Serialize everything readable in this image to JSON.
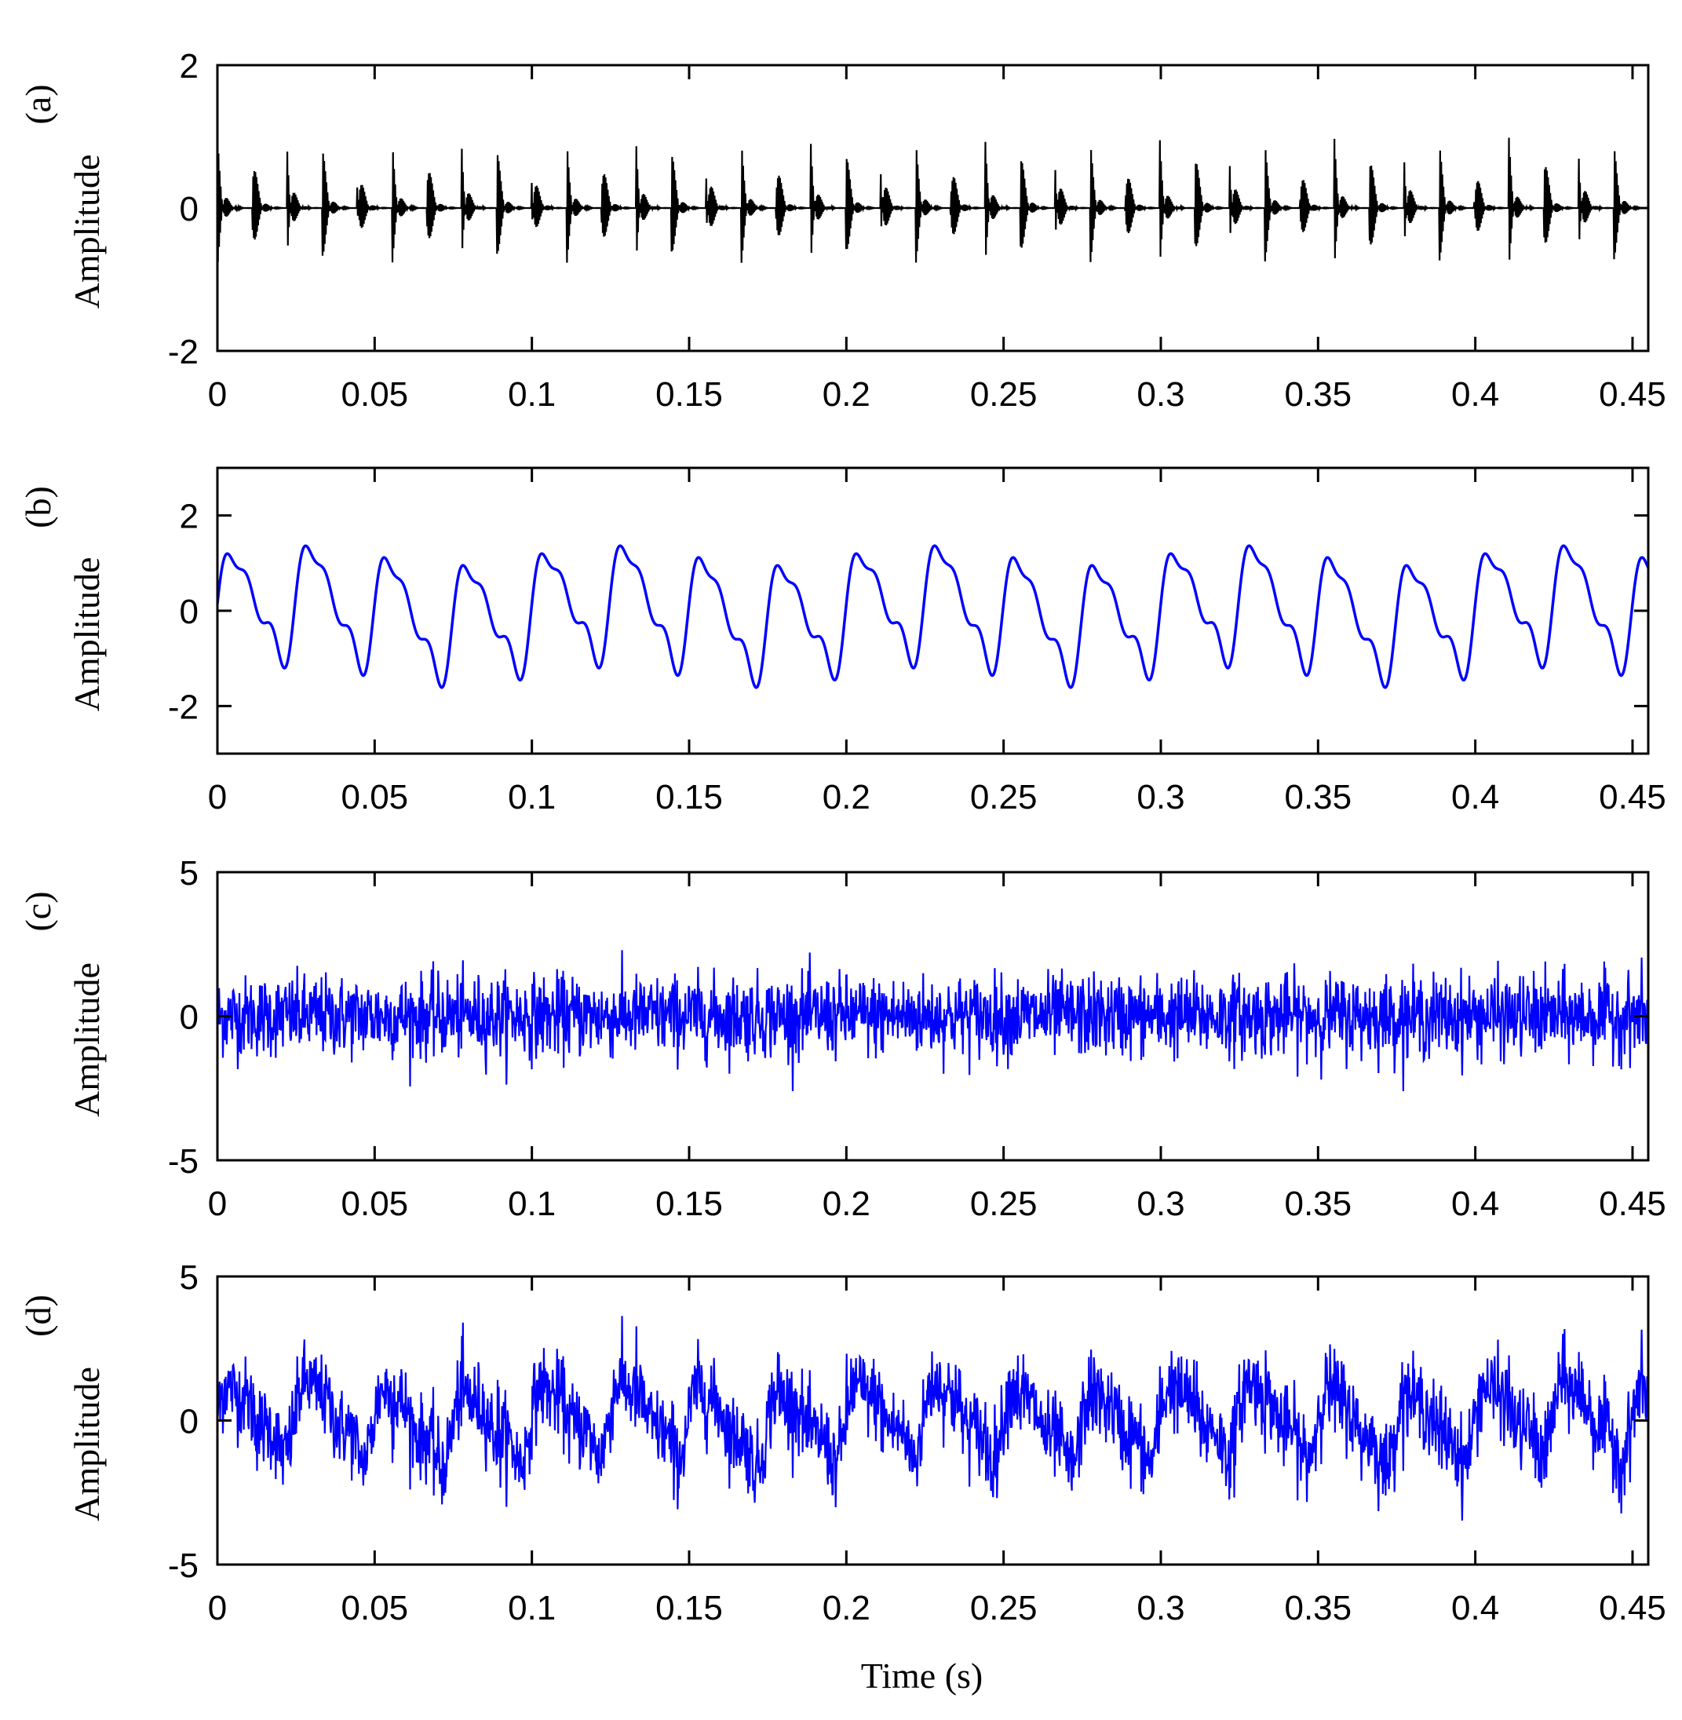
{
  "chart_data": [
    {
      "id": "a",
      "type": "line",
      "panel_label": "(a)",
      "ylabel": "Amplitude",
      "xlabel": "",
      "xlim": [
        0,
        0.455
      ],
      "ylim": [
        -2,
        2
      ],
      "xticks": [
        0,
        0.05,
        0.1,
        0.15,
        0.2,
        0.25,
        0.3,
        0.35,
        0.4,
        0.45
      ],
      "xtick_labels": [
        "0",
        "0.05",
        "0.1",
        "0.15",
        "0.2",
        "0.25",
        "0.3",
        "0.35",
        "0.4",
        "0.45"
      ],
      "yticks": [
        -2,
        0,
        2
      ],
      "ytick_labels": [
        "-2",
        "0",
        "2"
      ],
      "series": [
        {
          "color": "#000000",
          "signal": "periodic-decaying-impulses",
          "impulse_period_s": 0.0111,
          "peak_amplitude": 1.0,
          "trough_amplitude": -0.85
        }
      ]
    },
    {
      "id": "b",
      "type": "line",
      "panel_label": "(b)",
      "ylabel": "Amplitude",
      "xlabel": "",
      "xlim": [
        0,
        0.455
      ],
      "ylim": [
        -3,
        3
      ],
      "xticks": [
        0,
        0.05,
        0.1,
        0.15,
        0.2,
        0.25,
        0.3,
        0.35,
        0.4,
        0.45
      ],
      "xtick_labels": [
        "0",
        "0.05",
        "0.1",
        "0.15",
        "0.2",
        "0.25",
        "0.3",
        "0.35",
        "0.4",
        "0.45"
      ],
      "yticks": [
        -2,
        0,
        2
      ],
      "ytick_labels": [
        "-2",
        "0",
        "2"
      ],
      "series": [
        {
          "color": "#0000ff",
          "signal": "harmonic-sum",
          "fundamental_hz": 40,
          "components": [
            {
              "harmonic": 1,
              "amplitude": 1.0
            },
            {
              "harmonic": 2,
              "amplitude": 0.35
            },
            {
              "harmonic": 3,
              "amplitude": 0.25
            }
          ],
          "modulation_hz": 10,
          "modulation_amplitude": 0.2
        }
      ]
    },
    {
      "id": "c",
      "type": "line",
      "panel_label": "(c)",
      "ylabel": "Amplitude",
      "xlabel": "",
      "xlim": [
        0,
        0.455
      ],
      "ylim": [
        -5,
        5
      ],
      "xticks": [
        0,
        0.05,
        0.1,
        0.15,
        0.2,
        0.25,
        0.3,
        0.35,
        0.4,
        0.45
      ],
      "xtick_labels": [
        "0",
        "0.05",
        "0.1",
        "0.15",
        "0.2",
        "0.25",
        "0.3",
        "0.35",
        "0.4",
        "0.45"
      ],
      "yticks": [
        -5,
        0,
        5
      ],
      "ytick_labels": [
        "-5",
        "0",
        "5"
      ],
      "series": [
        {
          "color": "#0000ff",
          "signal": "gaussian-noise",
          "std": 0.7,
          "max": 2.7,
          "min": -2.6
        }
      ]
    },
    {
      "id": "d",
      "type": "line",
      "panel_label": "(d)",
      "ylabel": "Amplitude",
      "xlabel": "Time (s)",
      "xlim": [
        0,
        0.455
      ],
      "ylim": [
        -5,
        5
      ],
      "xticks": [
        0,
        0.05,
        0.1,
        0.15,
        0.2,
        0.25,
        0.3,
        0.35,
        0.4,
        0.45
      ],
      "xtick_labels": [
        "0",
        "0.05",
        "0.1",
        "0.15",
        "0.2",
        "0.25",
        "0.3",
        "0.35",
        "0.4",
        "0.45"
      ],
      "yticks": [
        -5,
        0,
        5
      ],
      "ytick_labels": [
        "-5",
        "0",
        "5"
      ],
      "series": [
        {
          "color": "#0000ff",
          "signal": "sum-of-a-b-c"
        }
      ]
    }
  ]
}
